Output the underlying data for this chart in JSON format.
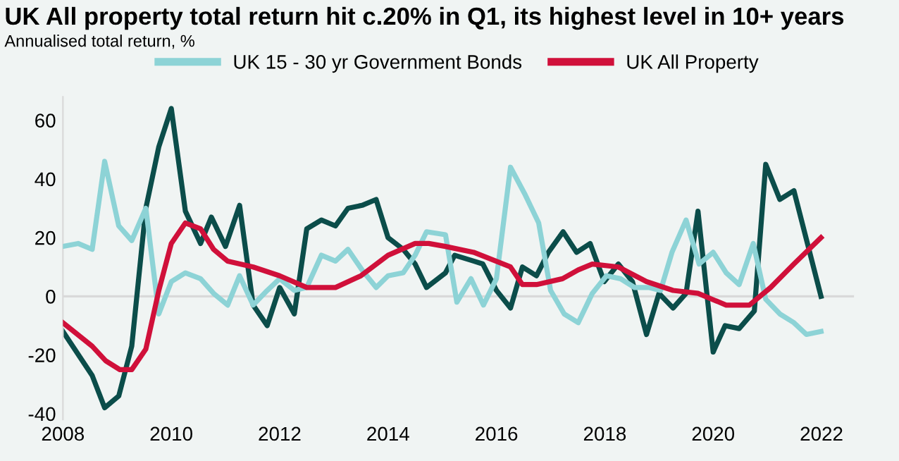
{
  "chart_data": {
    "type": "line",
    "title": "UK All property total return hit c.20% in Q1, its highest level in 10+ years",
    "subtitle": "Annualised total return, %",
    "series": [
      {
        "color": "#0b4d4a",
        "x": [
          2008.0,
          2008.54,
          2008.77,
          2009.03,
          2009.27,
          2009.53,
          2009.77,
          2010.0,
          2010.26,
          2010.54,
          2010.74,
          2011.0,
          2011.26,
          2011.51,
          2011.77,
          2012.0,
          2012.27,
          2012.5,
          2012.77,
          2013.03,
          2013.26,
          2013.52,
          2013.78,
          2014.0,
          2014.28,
          2014.5,
          2014.71,
          2015.06,
          2015.23,
          2015.58,
          2015.75,
          2016.0,
          2016.26,
          2016.48,
          2016.74,
          2016.96,
          2017.23,
          2017.48,
          2017.73,
          2017.99,
          2018.25,
          2018.51,
          2018.77,
          2019.0,
          2019.26,
          2019.5,
          2019.72,
          2020.0,
          2020.22,
          2020.48,
          2020.76,
          2020.97,
          2021.23,
          2021.49,
          2021.99
        ],
        "values": [
          -12,
          -27,
          -38,
          -34,
          -17,
          30,
          51,
          64,
          29,
          18,
          27,
          17,
          31,
          -3,
          -10,
          3,
          -6,
          23,
          26,
          24,
          30,
          31,
          33,
          20,
          16,
          11,
          3,
          8,
          14,
          12,
          11,
          2,
          -4,
          10,
          7,
          15,
          22,
          15,
          18,
          5,
          11,
          5,
          -13,
          1,
          -4,
          1,
          29,
          -19,
          -10,
          -11,
          -5,
          45,
          33,
          36,
          0
        ]
      },
      {
        "name": "UK 15 - 30 yr Government Bonds",
        "color": "#8dd3d6",
        "x": [
          2008.0,
          2008.28,
          2008.54,
          2008.77,
          2009.03,
          2009.27,
          2009.53,
          2009.77,
          2010.0,
          2010.26,
          2010.54,
          2010.78,
          2011.04,
          2011.26,
          2011.51,
          2011.77,
          2012.0,
          2012.27,
          2012.5,
          2012.77,
          2013.03,
          2013.26,
          2013.52,
          2013.78,
          2014.0,
          2014.28,
          2014.5,
          2014.71,
          2015.06,
          2015.27,
          2015.53,
          2015.76,
          2016.0,
          2016.26,
          2016.52,
          2016.78,
          2017.0,
          2017.25,
          2017.51,
          2017.77,
          2018.03,
          2018.29,
          2018.55,
          2018.81,
          2019.03,
          2019.24,
          2019.5,
          2019.74,
          2020.0,
          2020.24,
          2020.48,
          2020.74,
          2020.97,
          2021.23,
          2021.49,
          2021.72,
          2021.99
        ],
        "values": [
          17,
          18,
          16,
          46,
          24,
          19,
          30,
          -6,
          5,
          8,
          6,
          1,
          -3,
          7,
          -3,
          2,
          6,
          2,
          3,
          14,
          12,
          16,
          9,
          3,
          7,
          8,
          14,
          22,
          21,
          -2,
          6,
          -3,
          6,
          44,
          35,
          25,
          2,
          -6,
          -9,
          1,
          7,
          6,
          3,
          3,
          2,
          15,
          26,
          11,
          15,
          8,
          4,
          18,
          -1,
          -6,
          -9,
          -13,
          -12
        ]
      },
      {
        "name": "UK All Property",
        "color": "#d0103a",
        "x": [
          2008.0,
          2008.54,
          2008.79,
          2009.05,
          2009.27,
          2009.53,
          2009.77,
          2010.0,
          2010.26,
          2010.54,
          2010.78,
          2011.04,
          2011.51,
          2012.0,
          2012.5,
          2013.03,
          2013.5,
          2014.0,
          2014.5,
          2014.75,
          2015.06,
          2015.58,
          2016.26,
          2016.48,
          2016.74,
          2017.22,
          2017.51,
          2017.77,
          2018.25,
          2018.77,
          2019.26,
          2019.72,
          2020.24,
          2020.67,
          2021.06,
          2021.49,
          2021.99
        ],
        "values": [
          -9,
          -17,
          -22,
          -25,
          -25,
          -18,
          2,
          18,
          25,
          23,
          16,
          12,
          10,
          7,
          3,
          3,
          7,
          14,
          18,
          18,
          17,
          15,
          10,
          4,
          4,
          6,
          9,
          11,
          10,
          5,
          2,
          1,
          -3,
          -3,
          3,
          11,
          20
        ]
      }
    ],
    "xlim": [
      2008,
      2022.6
    ],
    "xticks": [
      2008,
      2010,
      2012,
      2014,
      2016,
      2018,
      2020,
      2022
    ],
    "ylim": [
      -42,
      68
    ],
    "yticks": [
      -40,
      -20,
      0,
      20,
      40,
      60
    ],
    "ref_lines": [
      {
        "axis": "y",
        "value": 0,
        "color": "#d9d9d9"
      }
    ],
    "legend": "top",
    "grid": false,
    "marker": "none",
    "line_style": "solid"
  }
}
